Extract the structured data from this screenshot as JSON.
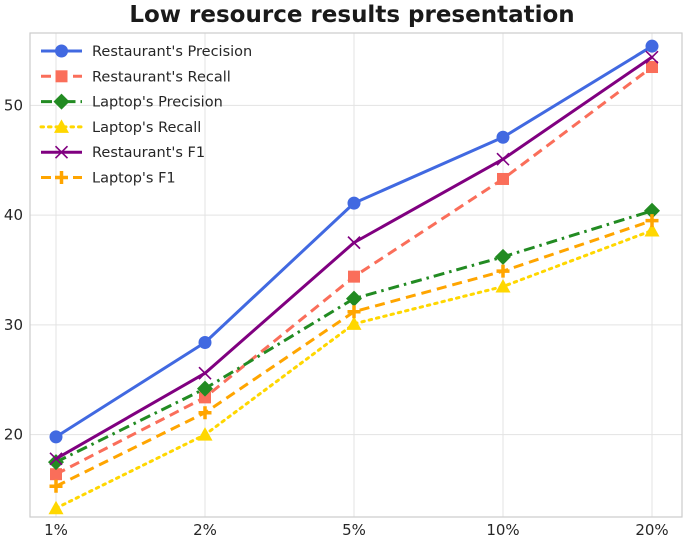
{
  "chart_data": {
    "type": "line",
    "title": "Low resource results presentation",
    "xlabel": "",
    "ylabel": "",
    "categories": [
      "1%",
      "2%",
      "5%",
      "10%",
      "20%"
    ],
    "ylim": [
      12.5,
      56.6
    ],
    "yticks": [
      20,
      30,
      40,
      50
    ],
    "grid": true,
    "legend_position": "top-left",
    "series": [
      {
        "name": "Restaurant's Precision",
        "values": [
          19.8,
          28.4,
          41.1,
          47.1,
          55.4
        ],
        "color": "#4169e1",
        "dash": "solid",
        "marker": "circle"
      },
      {
        "name": "Restaurant's Recall",
        "values": [
          16.4,
          23.4,
          34.4,
          43.3,
          53.5
        ],
        "color": "#fa6e5a",
        "dash": "dashed",
        "marker": "square"
      },
      {
        "name": "Laptop's Precision",
        "values": [
          17.5,
          24.2,
          32.4,
          36.2,
          40.4
        ],
        "color": "#228b22",
        "dash": "dashdot",
        "marker": "diamond"
      },
      {
        "name": "Laptop's Recall",
        "values": [
          13.3,
          20.0,
          30.1,
          33.5,
          38.6
        ],
        "color": "#ffd700",
        "dash": "dotted",
        "marker": "triangle"
      },
      {
        "name": "Restaurant's F1",
        "values": [
          17.8,
          25.6,
          37.5,
          45.1,
          54.4
        ],
        "color": "#800080",
        "dash": "solid",
        "marker": "x"
      },
      {
        "name": "Laptop's F1",
        "values": [
          15.3,
          22.0,
          31.2,
          34.9,
          39.5
        ],
        "color": "#ffa500",
        "dash": "dashed",
        "marker": "plus"
      }
    ]
  }
}
